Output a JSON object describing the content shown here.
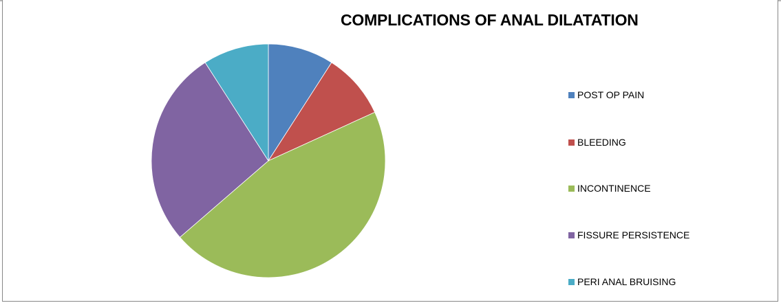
{
  "chart_data": {
    "type": "pie",
    "title": "COMPLICATIONS OF ANAL DILATATION",
    "categories": [
      "POST OP PAIN",
      "BLEEDING",
      "INCONTINENCE",
      "FISSURE PERSISTENCE",
      "PERI ANAL BRUISING"
    ],
    "values": [
      9.1,
      9.1,
      45.5,
      27.3,
      9.1
    ],
    "colors": [
      "#4F81BD",
      "#C0504D",
      "#9BBB59",
      "#8064A2",
      "#4BACC6"
    ],
    "legend_position": "right"
  }
}
